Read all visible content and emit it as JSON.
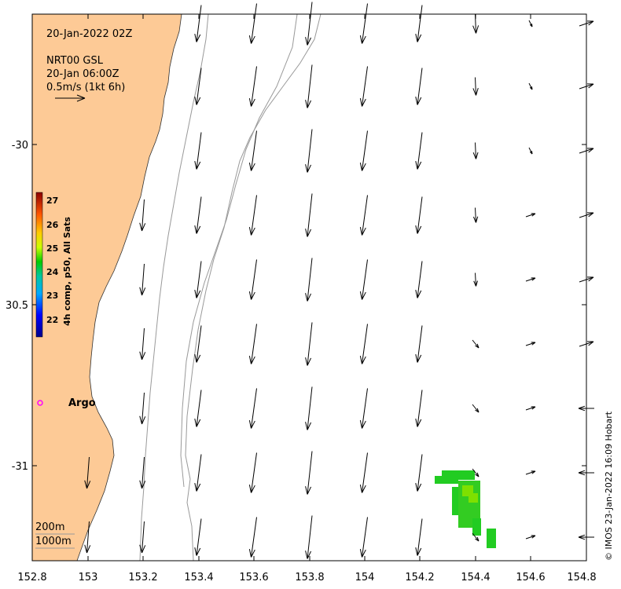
{
  "map": {
    "date_label": "20-Jan-2022 02Z",
    "current_source": "NRT00 GSL",
    "current_time": "20-Jan 06:00Z",
    "scale_label": "0.5m/s (1kt 6h)",
    "x_ticks": [
      "152.8",
      "153",
      "153.2",
      "153.4",
      "153.6",
      "153.8",
      "154",
      "154.2",
      "154.4",
      "154.6",
      "154.8"
    ],
    "y_ticks": [
      "-30",
      "30.5",
      "-31"
    ],
    "colorbar": {
      "title": "4h comp, p50, All Sats",
      "ticks": [
        "27",
        "26",
        "25",
        "24",
        "23",
        "22"
      ],
      "range": [
        21.6,
        27.4
      ]
    },
    "argo_label": "Argo",
    "depth_legend": [
      "200m",
      "1000m"
    ],
    "credit": "© IMOS 23-Jan-2022 16:09 Hobart",
    "colors": {
      "land": "#fdca96",
      "argo": "#ff00ff",
      "sst_patch": "#22cc22",
      "sst_patch_light": "#7ee000",
      "isobath": "#999999"
    }
  }
}
